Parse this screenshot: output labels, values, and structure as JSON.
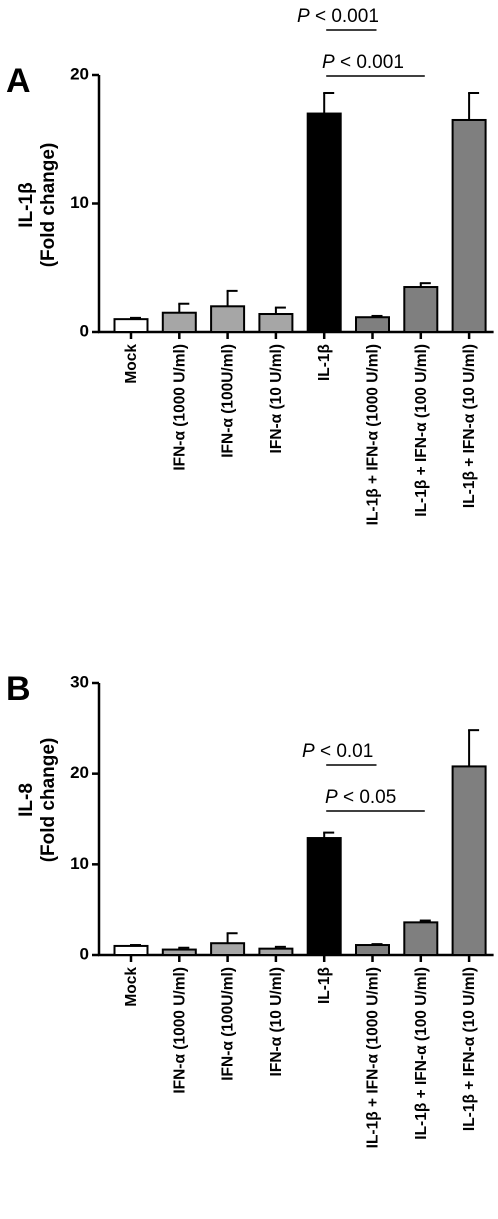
{
  "chart_data": [
    {
      "type": "bar",
      "panel": "A",
      "ylabel_line1": "IL-1β",
      "ylabel_line2": "(Fold change)",
      "ylim": [
        0,
        20
      ],
      "yticks": [
        0,
        10,
        20
      ],
      "categories": [
        "Mock",
        "IFN-α  (1000 U/ml)",
        "IFN-α  (100U/ml)",
        "IFN-α  (10 U/ml)",
        "IL-1β",
        "IL-1β + IFN-α  (1000 U/ml)",
        "IL-1β + IFN-α  (100 U/ml)",
        "IL-1β + IFN-α  (10 U/ml)"
      ],
      "values": [
        1.0,
        1.5,
        2.0,
        1.4,
        17.0,
        1.15,
        3.5,
        16.5
      ],
      "errors": [
        0.1,
        0.7,
        1.2,
        0.5,
        1.6,
        0.1,
        0.3,
        2.1
      ],
      "colors": [
        "#ffffff",
        "#a6a6a6",
        "#a6a6a6",
        "#a6a6a6",
        "#000000",
        "#7f7f7f",
        "#7f7f7f",
        "#7f7f7f"
      ],
      "annotations": [
        {
          "p_label": "P",
          "text": " < 0.001",
          "from": 4,
          "to": 5
        },
        {
          "p_label": "P",
          "text": " < 0.001",
          "from": 4,
          "to": 6
        }
      ]
    },
    {
      "type": "bar",
      "panel": "B",
      "ylabel_line1": "IL-8",
      "ylabel_line2": "(Fold change)",
      "ylim": [
        0,
        30
      ],
      "yticks": [
        0,
        10,
        20,
        30
      ],
      "categories": [
        "Mock",
        "IFN-α  (1000 U/ml)",
        "IFN-α  (100U/ml)",
        "IFN-α  (10 U/ml)",
        "IL-1β",
        "IL-1β + IFN-α  (1000 U/ml)",
        "IL-1β + IFN-α  (100 U/ml)",
        "IL-1β + IFN-α  (10 U/ml)"
      ],
      "values": [
        1.0,
        0.6,
        1.3,
        0.7,
        12.9,
        1.1,
        3.6,
        20.8
      ],
      "errors": [
        0.1,
        0.2,
        1.1,
        0.2,
        0.6,
        0.1,
        0.2,
        4.0
      ],
      "colors": [
        "#ffffff",
        "#a6a6a6",
        "#a6a6a6",
        "#a6a6a6",
        "#000000",
        "#7f7f7f",
        "#7f7f7f",
        "#7f7f7f"
      ],
      "annotations": [
        {
          "p_label": "P",
          "text": " < 0.01",
          "from": 4,
          "to": 5
        },
        {
          "p_label": "P",
          "text": " < 0.05",
          "from": 4,
          "to": 6
        }
      ]
    }
  ]
}
